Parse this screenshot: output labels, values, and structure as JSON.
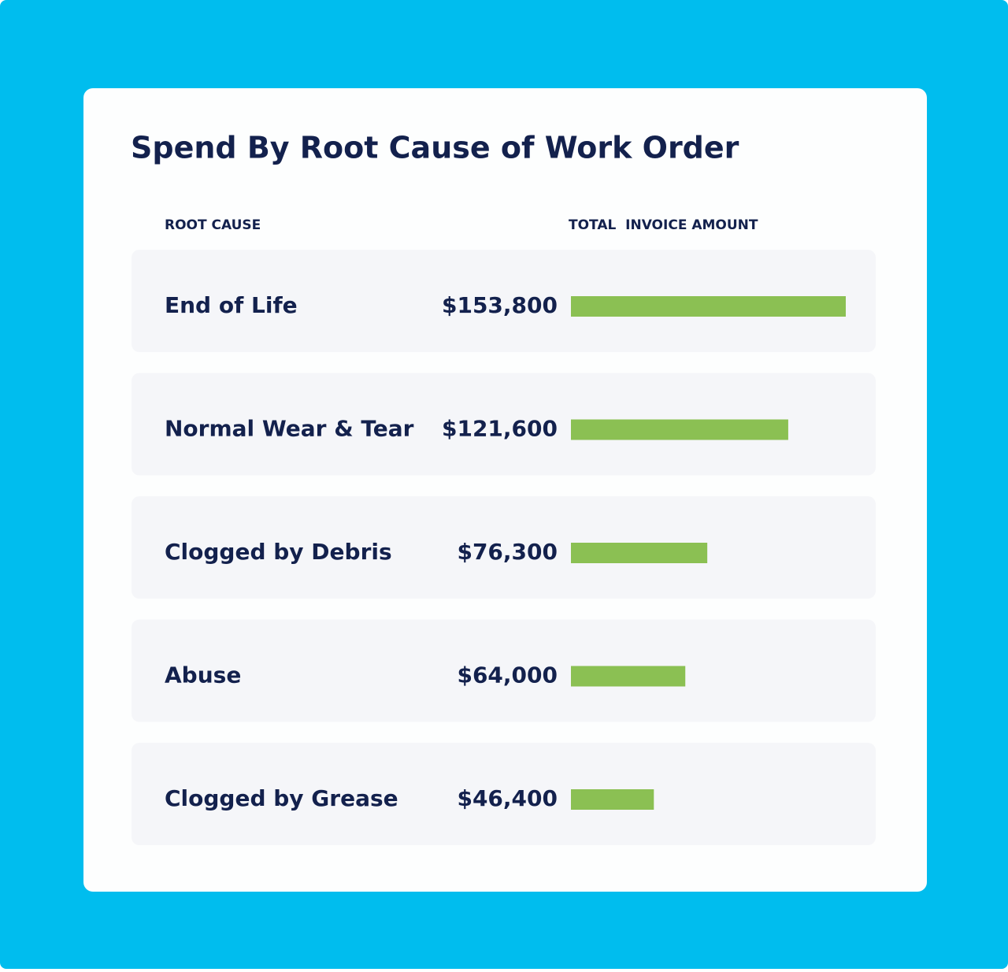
{
  "chart_data": {
    "type": "bar",
    "orientation": "horizontal",
    "title": "Spend By Root Cause of Work Order",
    "category_header": "ROOT CAUSE",
    "value_header": "TOTAL  INVOICE AMOUNT",
    "categories": [
      "End of Life",
      "Normal Wear & Tear",
      "Clogged by Debris",
      "Abuse",
      "Clogged by Grease"
    ],
    "values": [
      153800,
      121600,
      76300,
      64000,
      46400
    ],
    "value_labels": [
      "$153,800",
      "$121,600",
      "$76,300",
      "$64,000",
      "$46,400"
    ],
    "color": "#8bc053"
  }
}
